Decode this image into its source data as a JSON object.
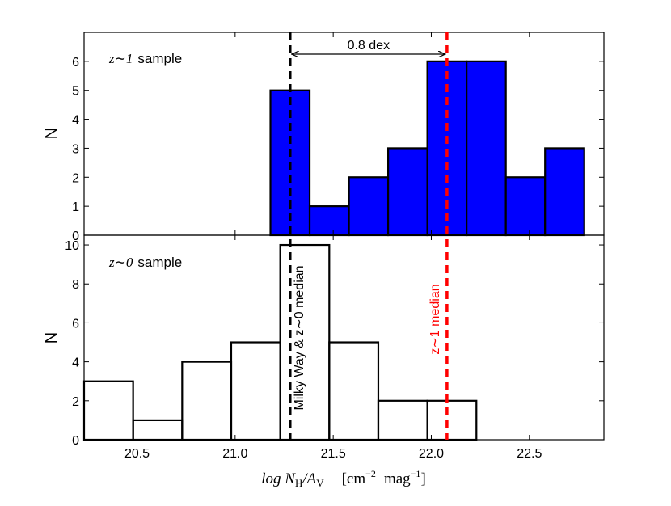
{
  "chart_data": [
    {
      "type": "bar",
      "panel": "top",
      "sample_label": "sample",
      "sample_z": "z",
      "sample_tilde": "∼",
      "sample_num": "1",
      "ylabel": "N",
      "ylim": [
        0,
        7
      ],
      "yticks": [
        0,
        1,
        2,
        3,
        4,
        5,
        6
      ],
      "bar_color": "#0000ff",
      "bins": [
        {
          "x0": 21.18,
          "x1": 21.38,
          "count": 5
        },
        {
          "x0": 21.38,
          "x1": 21.58,
          "count": 1
        },
        {
          "x0": 21.58,
          "x1": 21.78,
          "count": 2
        },
        {
          "x0": 21.78,
          "x1": 21.98,
          "count": 3
        },
        {
          "x0": 21.98,
          "x1": 22.18,
          "count": 6
        },
        {
          "x0": 22.18,
          "x1": 22.38,
          "count": 6
        },
        {
          "x0": 22.38,
          "x1": 22.58,
          "count": 2
        },
        {
          "x0": 22.58,
          "x1": 22.78,
          "count": 3
        }
      ],
      "annotation": {
        "text": "0.8 dex",
        "from": 21.28,
        "to": 22.08
      }
    },
    {
      "type": "bar",
      "panel": "bottom",
      "sample_label": "sample",
      "sample_z": "z",
      "sample_tilde": "∼",
      "sample_num": "0",
      "ylabel": "N",
      "ylim": [
        0,
        10.5
      ],
      "yticks": [
        0,
        2,
        4,
        6,
        8,
        10
      ],
      "bar_color": "none",
      "bins": [
        {
          "x0": 20.23,
          "x1": 20.48,
          "count": 3
        },
        {
          "x0": 20.48,
          "x1": 20.73,
          "count": 1
        },
        {
          "x0": 20.73,
          "x1": 20.98,
          "count": 4
        },
        {
          "x0": 20.98,
          "x1": 21.23,
          "count": 5
        },
        {
          "x0": 21.23,
          "x1": 21.48,
          "count": 10
        },
        {
          "x0": 21.48,
          "x1": 21.73,
          "count": 5
        },
        {
          "x0": 21.73,
          "x1": 21.98,
          "count": 2
        },
        {
          "x0": 21.98,
          "x1": 22.23,
          "count": 2
        }
      ]
    }
  ],
  "shared": {
    "xlim": [
      20.23,
      22.88
    ],
    "xticks": [
      "20.5",
      "21.0",
      "21.5",
      "22.0",
      "22.5"
    ],
    "xlabel_text": "log N",
    "xlabel_sub_h": "H",
    "xlabel_slash": "/A",
    "xlabel_sub_v": "V",
    "xlabel_units_a": "[cm",
    "xlabel_units_exp_a": "−2",
    "xlabel_units_b": "mag",
    "xlabel_units_exp_b": "−1",
    "xlabel_close": "]",
    "medians": [
      {
        "value": 21.28,
        "color": "#000000",
        "label": "Milky Way & z∼0 median"
      },
      {
        "value": 22.08,
        "color": "#ff0000",
        "label": "z∼1 median"
      }
    ]
  }
}
